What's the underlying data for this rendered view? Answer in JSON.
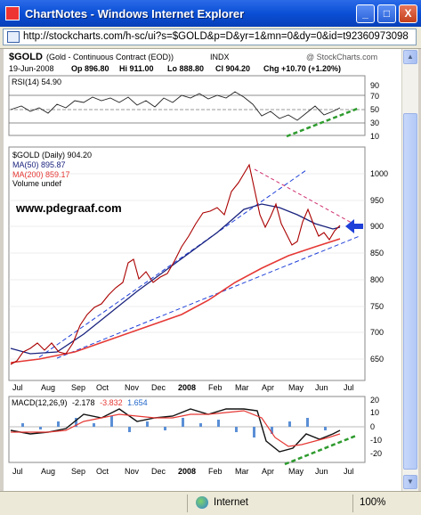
{
  "window": {
    "title": "ChartNotes - Windows Internet Explorer",
    "minimize": "_",
    "maximize": "□",
    "close": "X"
  },
  "address": {
    "url": "http://stockcharts.com/h-sc/ui?s=$GOLD&p=D&yr=1&mn=0&dy=0&id=t92360973098"
  },
  "header": {
    "symbol": "$GOLD",
    "name": "(Gold - Continuous Contract (EOD))",
    "exchange": "INDX",
    "copyright": "@ StockCharts.com",
    "date": "19-Jun-2008",
    "open": "Op 896.80",
    "high": "Hi 911.00",
    "low": "Lo 888.80",
    "close": "Cl 904.20",
    "change": "Chg +10.70 (+1.20%)"
  },
  "rsi_panel": {
    "label": "RSI(14) 54.90",
    "ticks": [
      "70",
      "50",
      "30",
      "10",
      "90"
    ]
  },
  "price_panel": {
    "legend_main": "$GOLD (Daily) 904.20",
    "legend_ma50": "MA(50) 895.87",
    "legend_ma200": "MA(200) 859.17",
    "legend_volume": "Volume undef",
    "watermark": "www.pdegraaf.com",
    "y_ticks": [
      "1000",
      "950",
      "900",
      "850",
      "800",
      "750",
      "700",
      "650"
    ]
  },
  "macd_panel": {
    "label_prefix": "MACD(12,26,9)",
    "v1": "-2.178",
    "v2": "-3.832",
    "v3": "1.654",
    "y_ticks": [
      "20",
      "10",
      "0",
      "-10",
      "-20"
    ]
  },
  "x_axis": {
    "labels": [
      "Jul",
      "Aug",
      "Sep",
      "Oct",
      "Nov",
      "Dec",
      "2008",
      "Feb",
      "Mar",
      "Apr",
      "May",
      "Jun",
      "Jul"
    ]
  },
  "status": {
    "zone": "Internet",
    "zoom": "100%"
  },
  "colors": {
    "price": "#aa0000",
    "ma50": "#1a237e",
    "ma200": "#e53935",
    "channel": "#1e3fd8",
    "signal": "#2e9b2e",
    "arrow": "#1e3fd8"
  },
  "chart_data": {
    "type": "line",
    "title": "$GOLD (Gold - Continuous Contract (EOD))",
    "x": [
      "Jul",
      "Aug",
      "Sep",
      "Oct",
      "Nov",
      "Dec",
      "2008",
      "Feb",
      "Mar",
      "Apr",
      "May",
      "Jun",
      "Jul"
    ],
    "ylim": [
      630,
      1040
    ],
    "series": [
      {
        "name": "$GOLD (Daily) 904.20",
        "values": [
          655,
          668,
          705,
          745,
          800,
          795,
          850,
          915,
          985,
          905,
          880,
          890,
          904
        ]
      },
      {
        "name": "MA(50) 895.87",
        "values": [
          670,
          665,
          690,
          730,
          770,
          795,
          830,
          880,
          920,
          920,
          900,
          896,
          896
        ]
      },
      {
        "name": "MA(200) 859.17",
        "values": [
          645,
          655,
          670,
          690,
          715,
          735,
          760,
          790,
          815,
          835,
          850,
          858,
          860
        ]
      }
    ],
    "rsi": {
      "ylim": [
        0,
        100
      ],
      "values": [
        55,
        45,
        65,
        60,
        55,
        50,
        70,
        75,
        60,
        35,
        38,
        50,
        55
      ]
    },
    "macd": {
      "ylim": [
        -25,
        25
      ],
      "macd": [
        -2,
        1,
        12,
        8,
        14,
        6,
        10,
        15,
        12,
        -5,
        -10,
        -5,
        -2
      ],
      "signal": [
        0,
        0,
        8,
        10,
        11,
        8,
        9,
        12,
        13,
        2,
        -6,
        -7,
        -4
      ]
    }
  }
}
